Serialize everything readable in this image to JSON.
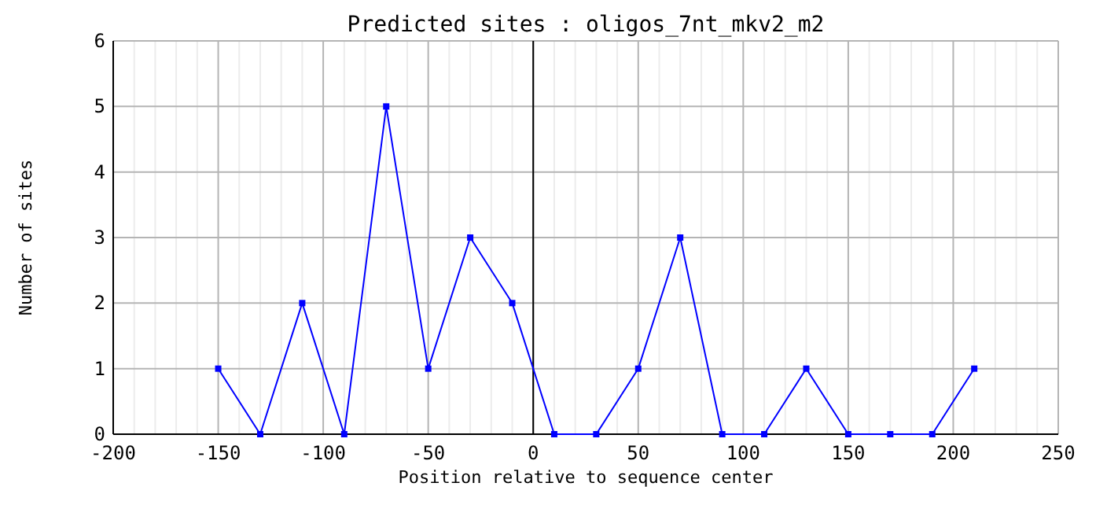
{
  "chart_data": {
    "type": "line",
    "title": "Predicted sites : oligos_7nt_mkv2_m2",
    "xlabel": "Position relative to sequence center",
    "ylabel": "Number of sites",
    "x": [
      -150,
      -130,
      -110,
      -90,
      -70,
      -50,
      -30,
      -10,
      10,
      30,
      50,
      70,
      90,
      110,
      130,
      150,
      170,
      190,
      210
    ],
    "series": [
      {
        "color": "#0000ff",
        "values": [
          1,
          0,
          2,
          0,
          5,
          1,
          3,
          2,
          0,
          0,
          1,
          3,
          0,
          0,
          1,
          0,
          0,
          0,
          1
        ]
      }
    ],
    "xlim": [
      -200,
      250
    ],
    "xticks": [
      -200,
      {
        "value": -190,
        "label": null
      },
      {
        "value": -180,
        "label": null
      },
      {
        "value": -170,
        "label": null
      },
      {
        "value": -160,
        "label": null
      },
      -150,
      {
        "value": -140,
        "label": null
      },
      {
        "value": -130,
        "label": null
      },
      {
        "value": -120,
        "label": null
      },
      {
        "value": -110,
        "label": null
      },
      -100,
      {
        "value": -90,
        "label": null
      },
      {
        "value": -80,
        "label": null
      },
      {
        "value": -70,
        "label": null
      },
      {
        "value": -60,
        "label": null
      },
      -50,
      {
        "value": -40,
        "label": null
      },
      {
        "value": -30,
        "label": null
      },
      {
        "value": -20,
        "label": null
      },
      {
        "value": -10,
        "label": null
      },
      0,
      {
        "value": 10,
        "label": null
      },
      {
        "value": 20,
        "label": null
      },
      {
        "value": 30,
        "label": null
      },
      {
        "value": 40,
        "label": null
      },
      50,
      {
        "value": 60,
        "label": null
      },
      {
        "value": 70,
        "label": null
      },
      {
        "value": 80,
        "label": null
      },
      {
        "value": 90,
        "label": null
      },
      100,
      {
        "value": 110,
        "label": null
      },
      {
        "value": 120,
        "label": null
      },
      {
        "value": 130,
        "label": null
      },
      {
        "value": 140,
        "label": null
      },
      150,
      {
        "value": 160,
        "label": null
      },
      {
        "value": 170,
        "label": null
      },
      {
        "value": 180,
        "label": null
      },
      {
        "value": 190,
        "label": null
      },
      200,
      {
        "value": 210,
        "label": null
      },
      {
        "value": 220,
        "label": null
      },
      {
        "value": 230,
        "label": null
      },
      {
        "value": 240,
        "label": null
      },
      250
    ],
    "ylim": [
      0,
      6
    ],
    "yticks": [
      0,
      1,
      2,
      3,
      4,
      5,
      6
    ],
    "ref_lines": [
      {
        "axis": "x",
        "value": 0,
        "color": "#000000"
      }
    ],
    "grid": true,
    "marker": "square",
    "line_style": "solid"
  }
}
